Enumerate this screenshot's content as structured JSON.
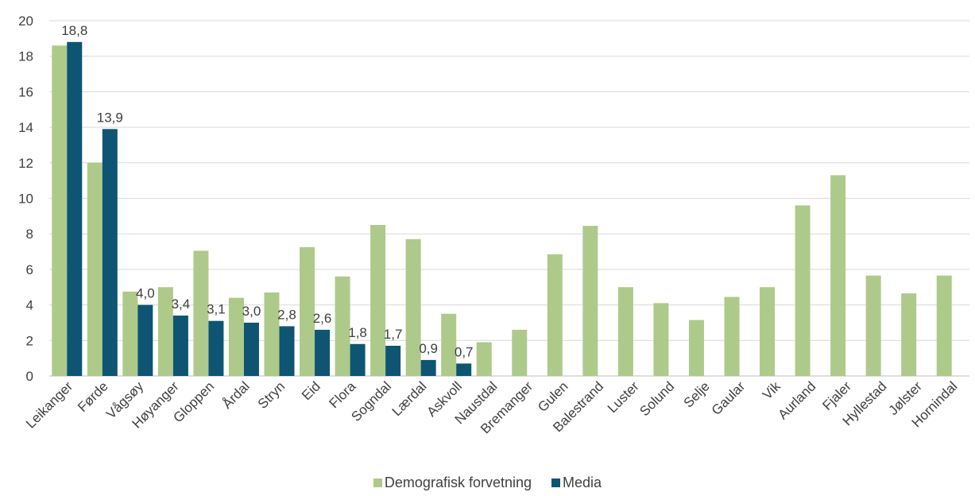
{
  "colors": {
    "demografisk": "#AECA8A",
    "media": "#0E5573",
    "grid": "#D9D9D9",
    "axis": "#BFBFBF",
    "text": "#404040"
  },
  "chart_data": {
    "type": "bar",
    "categories": [
      "Leikanger",
      "Førde",
      "Vågsøy",
      "Høyanger",
      "Gloppen",
      "Årdal",
      "Stryn",
      "Eid",
      "Flora",
      "Sogndal",
      "Lærdal",
      "Askvoll",
      "Naustdal",
      "Bremanger",
      "Gulen",
      "Balestrand",
      "Luster",
      "Solund",
      "Selje",
      "Gaular",
      "Vik",
      "Aurland",
      "Fjaler",
      "Hyllestad",
      "Jølster",
      "Hornindal"
    ],
    "series": [
      {
        "name": "Demografisk forvetning",
        "values": [
          18.6,
          12.0,
          4.75,
          5.0,
          7.05,
          4.4,
          4.7,
          7.25,
          5.6,
          8.5,
          7.7,
          3.5,
          1.9,
          2.6,
          6.85,
          8.45,
          5.0,
          4.1,
          3.15,
          4.45,
          5.0,
          9.6,
          11.3,
          5.65,
          4.65,
          5.65
        ]
      },
      {
        "name": "Media",
        "values": [
          18.8,
          13.9,
          4.0,
          3.4,
          3.1,
          3.0,
          2.8,
          2.6,
          1.8,
          1.7,
          0.9,
          0.7,
          null,
          null,
          null,
          null,
          null,
          null,
          null,
          null,
          null,
          null,
          null,
          null,
          null,
          null
        ],
        "labels": [
          "18,8",
          "13,9",
          "4,0",
          "3,4",
          "3,1",
          "3,0",
          "2,8",
          "2,6",
          "1,8",
          "1,7",
          "0,9",
          "0,7"
        ]
      }
    ],
    "ylim": [
      0,
      20
    ],
    "yticks": [
      0,
      2,
      4,
      6,
      8,
      10,
      12,
      14,
      16,
      18,
      20
    ],
    "title": "",
    "xlabel": "",
    "ylabel": "",
    "grid": true,
    "legend_position": "bottom"
  }
}
